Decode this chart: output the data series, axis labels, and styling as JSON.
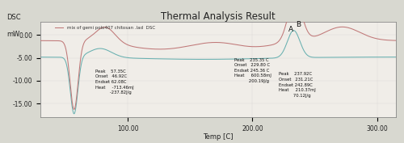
{
  "title": "Thermal Analysis Result",
  "xlabel": "Temp [C]",
  "ylabel_line1": "DSC",
  "ylabel_line2": "mW",
  "xlim": [
    30,
    315
  ],
  "ylim": [
    -18,
    3
  ],
  "yticks": [
    0.0,
    -5.0,
    -10.0,
    -15.0
  ],
  "xticks": [
    100.0,
    200.0,
    300.0
  ],
  "legend_label": "mix of gemi polo407 chitosan .lad  DSC",
  "color_red": "#c07878",
  "color_teal": "#68b0b0",
  "annotation_left": {
    "Peak": "57.35C",
    "Onset": "46.92C",
    "Endset": "62.08C",
    "Heat1": "-713.46mJ",
    "Heat2": "-237.82J/g"
  },
  "annotation_right_A": {
    "Peak": "235.35 C",
    "Onset": "229.80 C",
    "Endset": "245.36 C",
    "Heat1": "600.58mJ",
    "Heat2": "200.19J/g"
  },
  "annotation_right_B": {
    "Peak": "237.92C",
    "Onset": "231.21C",
    "Endset": "242.89C",
    "Heat1": "210.37mJ",
    "Heat2": "70.12J/g"
  },
  "bg_color": "#d8d8d0",
  "plot_bg_color": "#f0ede8"
}
